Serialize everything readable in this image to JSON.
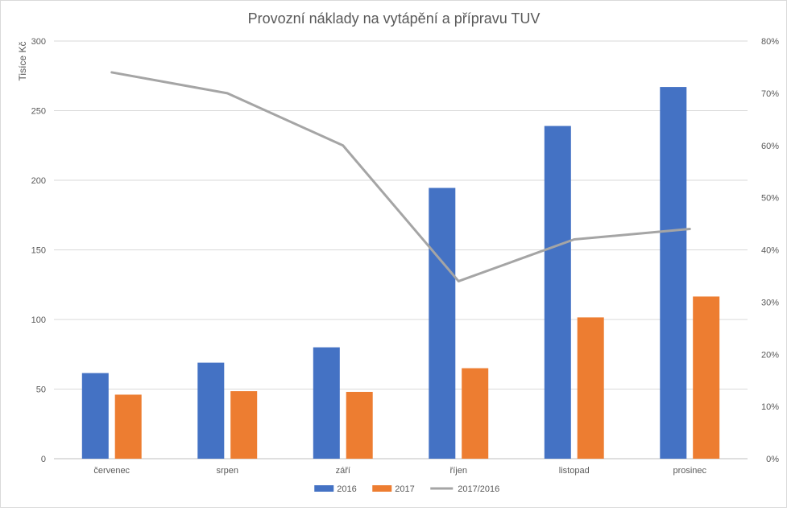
{
  "chart_data": {
    "type": "bar",
    "title": "Provozní náklady na vytápění a přípravu TUV",
    "ylabel": "Tisíce Kč",
    "xlabel": "",
    "categories": [
      "červenec",
      "srpen",
      "září",
      "říjen",
      "listopad",
      "prosinec"
    ],
    "ylim": [
      0,
      300
    ],
    "yticks": [
      0,
      50,
      100,
      150,
      200,
      250,
      300
    ],
    "y2lim": [
      0,
      0.8
    ],
    "y2ticks": [
      "0%",
      "10%",
      "20%",
      "30%",
      "40%",
      "50%",
      "60%",
      "70%",
      "80%"
    ],
    "grid": true,
    "legend_position": "bottom",
    "series": [
      {
        "name": "2016",
        "type": "bar",
        "axis": "left",
        "color": "#4472C4",
        "values": [
          61.5,
          69,
          80,
          194.5,
          239,
          267
        ]
      },
      {
        "name": "2017",
        "type": "bar",
        "axis": "left",
        "color": "#ED7D31",
        "values": [
          46,
          48.5,
          48,
          65,
          101.5,
          116.5
        ]
      },
      {
        "name": "2017/2016",
        "type": "line",
        "axis": "right",
        "color": "#A5A5A5",
        "values": [
          0.74,
          0.7,
          0.6,
          0.34,
          0.42,
          0.44
        ]
      }
    ]
  }
}
